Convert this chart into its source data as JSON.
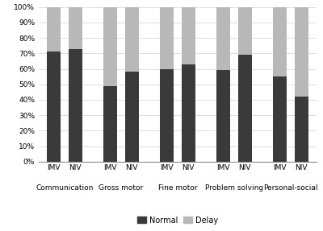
{
  "categories": [
    "Communication",
    "Gross motor",
    "Fine motor",
    "Problem solving",
    "Personal-social"
  ],
  "groups": [
    "IMV",
    "NIV"
  ],
  "normal_values": [
    71,
    73,
    49,
    58,
    60,
    63,
    59,
    69,
    55,
    42
  ],
  "delay_values": [
    29,
    27,
    51,
    42,
    40,
    37,
    41,
    31,
    45,
    58
  ],
  "normal_color": "#3a3a3a",
  "delay_color": "#b8b8b8",
  "ylabel_ticks": [
    "0%",
    "10%",
    "20%",
    "30%",
    "40%",
    "50%",
    "60%",
    "70%",
    "80%",
    "90%",
    "100%"
  ],
  "ytick_values": [
    0,
    10,
    20,
    30,
    40,
    50,
    60,
    70,
    80,
    90,
    100
  ],
  "legend_normal": "Normal",
  "legend_delay": "Delay",
  "background_color": "#ffffff",
  "fontsize_ticks": 6.5,
  "fontsize_labels": 6.5,
  "fontsize_legend": 7
}
